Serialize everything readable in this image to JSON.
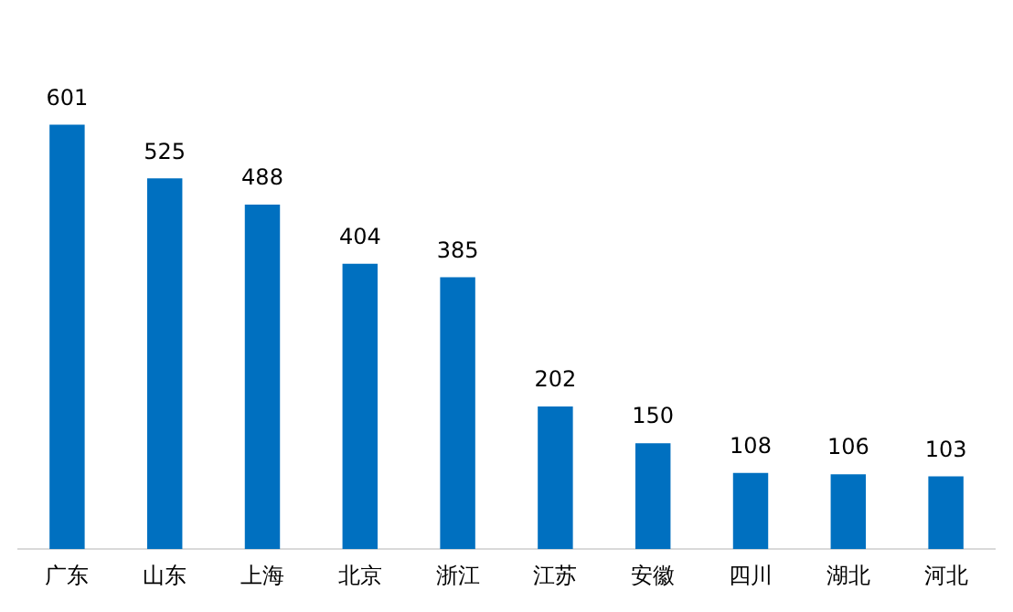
{
  "chart_data": {
    "type": "bar",
    "categories": [
      "广东",
      "山东",
      "上海",
      "北京",
      "浙江",
      "江苏",
      "安徽",
      "四川",
      "湖北",
      "河北"
    ],
    "values": [
      601,
      525,
      488,
      404,
      385,
      202,
      150,
      108,
      106,
      103
    ],
    "color": "#0070c0",
    "data_labels": true,
    "grid": false,
    "legend": false
  }
}
